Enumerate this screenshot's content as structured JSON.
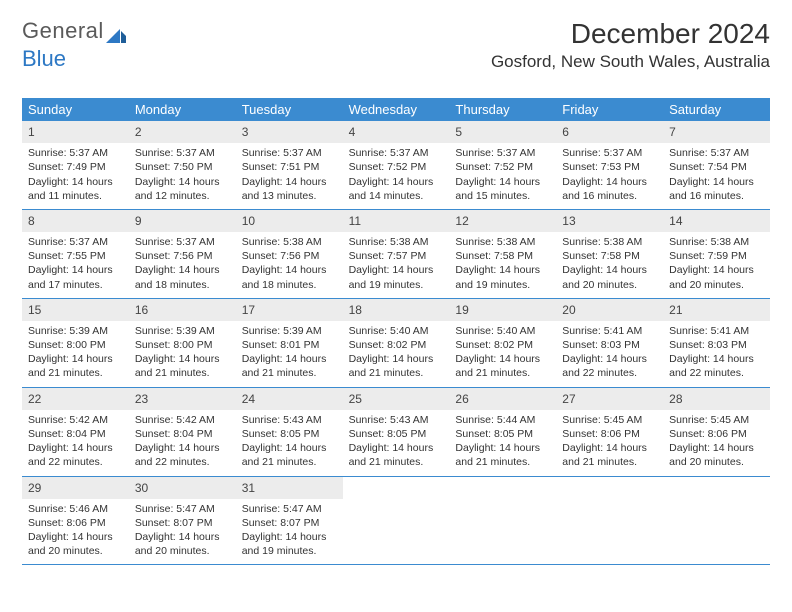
{
  "logo": {
    "text1": "General",
    "text2": "Blue"
  },
  "title": "December 2024",
  "location": "Gosford, New South Wales, Australia",
  "colors": {
    "header_bg": "#3b8bd0",
    "header_text": "#ffffff",
    "daynum_bg": "#ececec",
    "border": "#3b8bd0",
    "logo_gray": "#5a5a5a",
    "logo_blue": "#2d78c4"
  },
  "dayNames": [
    "Sunday",
    "Monday",
    "Tuesday",
    "Wednesday",
    "Thursday",
    "Friday",
    "Saturday"
  ],
  "weeks": [
    [
      {
        "n": "1",
        "sr": "5:37 AM",
        "ss": "7:49 PM",
        "dl": "14 hours and 11 minutes."
      },
      {
        "n": "2",
        "sr": "5:37 AM",
        "ss": "7:50 PM",
        "dl": "14 hours and 12 minutes."
      },
      {
        "n": "3",
        "sr": "5:37 AM",
        "ss": "7:51 PM",
        "dl": "14 hours and 13 minutes."
      },
      {
        "n": "4",
        "sr": "5:37 AM",
        "ss": "7:52 PM",
        "dl": "14 hours and 14 minutes."
      },
      {
        "n": "5",
        "sr": "5:37 AM",
        "ss": "7:52 PM",
        "dl": "14 hours and 15 minutes."
      },
      {
        "n": "6",
        "sr": "5:37 AM",
        "ss": "7:53 PM",
        "dl": "14 hours and 16 minutes."
      },
      {
        "n": "7",
        "sr": "5:37 AM",
        "ss": "7:54 PM",
        "dl": "14 hours and 16 minutes."
      }
    ],
    [
      {
        "n": "8",
        "sr": "5:37 AM",
        "ss": "7:55 PM",
        "dl": "14 hours and 17 minutes."
      },
      {
        "n": "9",
        "sr": "5:37 AM",
        "ss": "7:56 PM",
        "dl": "14 hours and 18 minutes."
      },
      {
        "n": "10",
        "sr": "5:38 AM",
        "ss": "7:56 PM",
        "dl": "14 hours and 18 minutes."
      },
      {
        "n": "11",
        "sr": "5:38 AM",
        "ss": "7:57 PM",
        "dl": "14 hours and 19 minutes."
      },
      {
        "n": "12",
        "sr": "5:38 AM",
        "ss": "7:58 PM",
        "dl": "14 hours and 19 minutes."
      },
      {
        "n": "13",
        "sr": "5:38 AM",
        "ss": "7:58 PM",
        "dl": "14 hours and 20 minutes."
      },
      {
        "n": "14",
        "sr": "5:38 AM",
        "ss": "7:59 PM",
        "dl": "14 hours and 20 minutes."
      }
    ],
    [
      {
        "n": "15",
        "sr": "5:39 AM",
        "ss": "8:00 PM",
        "dl": "14 hours and 21 minutes."
      },
      {
        "n": "16",
        "sr": "5:39 AM",
        "ss": "8:00 PM",
        "dl": "14 hours and 21 minutes."
      },
      {
        "n": "17",
        "sr": "5:39 AM",
        "ss": "8:01 PM",
        "dl": "14 hours and 21 minutes."
      },
      {
        "n": "18",
        "sr": "5:40 AM",
        "ss": "8:02 PM",
        "dl": "14 hours and 21 minutes."
      },
      {
        "n": "19",
        "sr": "5:40 AM",
        "ss": "8:02 PM",
        "dl": "14 hours and 21 minutes."
      },
      {
        "n": "20",
        "sr": "5:41 AM",
        "ss": "8:03 PM",
        "dl": "14 hours and 22 minutes."
      },
      {
        "n": "21",
        "sr": "5:41 AM",
        "ss": "8:03 PM",
        "dl": "14 hours and 22 minutes."
      }
    ],
    [
      {
        "n": "22",
        "sr": "5:42 AM",
        "ss": "8:04 PM",
        "dl": "14 hours and 22 minutes."
      },
      {
        "n": "23",
        "sr": "5:42 AM",
        "ss": "8:04 PM",
        "dl": "14 hours and 22 minutes."
      },
      {
        "n": "24",
        "sr": "5:43 AM",
        "ss": "8:05 PM",
        "dl": "14 hours and 21 minutes."
      },
      {
        "n": "25",
        "sr": "5:43 AM",
        "ss": "8:05 PM",
        "dl": "14 hours and 21 minutes."
      },
      {
        "n": "26",
        "sr": "5:44 AM",
        "ss": "8:05 PM",
        "dl": "14 hours and 21 minutes."
      },
      {
        "n": "27",
        "sr": "5:45 AM",
        "ss": "8:06 PM",
        "dl": "14 hours and 21 minutes."
      },
      {
        "n": "28",
        "sr": "5:45 AM",
        "ss": "8:06 PM",
        "dl": "14 hours and 20 minutes."
      }
    ],
    [
      {
        "n": "29",
        "sr": "5:46 AM",
        "ss": "8:06 PM",
        "dl": "14 hours and 20 minutes."
      },
      {
        "n": "30",
        "sr": "5:47 AM",
        "ss": "8:07 PM",
        "dl": "14 hours and 20 minutes."
      },
      {
        "n": "31",
        "sr": "5:47 AM",
        "ss": "8:07 PM",
        "dl": "14 hours and 19 minutes."
      },
      null,
      null,
      null,
      null
    ]
  ],
  "labels": {
    "sunrise": "Sunrise: ",
    "sunset": "Sunset: ",
    "daylight": "Daylight: "
  }
}
